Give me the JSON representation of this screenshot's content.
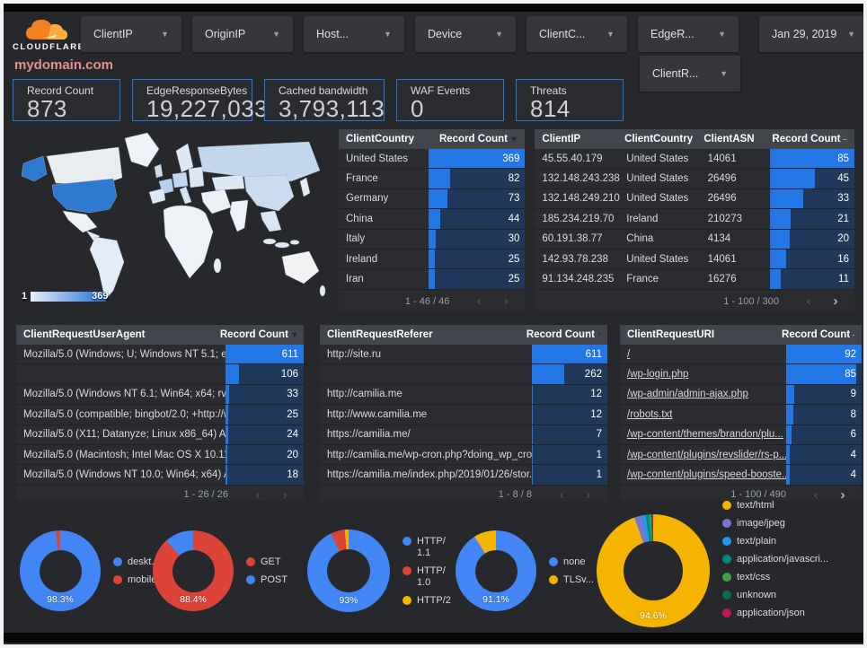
{
  "brand": {
    "name": "CLOUDFLARE"
  },
  "filters": [
    {
      "label": "ClientIP"
    },
    {
      "label": "OriginIP"
    },
    {
      "label": "Host..."
    },
    {
      "label": "Device"
    },
    {
      "label": "ClientC..."
    },
    {
      "label": "EdgeR..."
    }
  ],
  "date_filter": {
    "label": "Jan 29, 2019"
  },
  "filter_row2": {
    "label": "ClientR..."
  },
  "title": "mydomain.com",
  "scorecards": [
    {
      "label": "Record Count",
      "value": "873"
    },
    {
      "label": "EdgeResponseBytes",
      "value": "19,227,033"
    },
    {
      "label": "Cached bandwidth",
      "value": "3,793,113"
    },
    {
      "label": "WAF Events",
      "value": "0"
    },
    {
      "label": "Threats",
      "value": "814"
    }
  ],
  "map": {
    "legend_min": "1",
    "legend_max": "369"
  },
  "tables": {
    "client_country": {
      "columns": [
        "ClientCountry",
        "Record Count"
      ],
      "sort_glyph": "▼",
      "max": 369,
      "rows": [
        [
          "United States",
          369
        ],
        [
          "France",
          82
        ],
        [
          "Germany",
          73
        ],
        [
          "China",
          44
        ],
        [
          "Italy",
          30
        ],
        [
          "Ireland",
          25
        ],
        [
          "Iran",
          25
        ]
      ],
      "pagination": {
        "text": "1 - 46 / 46",
        "prev_enabled": false,
        "next_enabled": false
      }
    },
    "client_ip": {
      "columns": [
        "ClientIP",
        "ClientCountry",
        "ClientASN",
        "Record Count"
      ],
      "sort_glyph": "–",
      "max": 85,
      "rows": [
        [
          "45.55.40.179",
          "United States",
          "14061",
          85
        ],
        [
          "132.148.243.238",
          "United States",
          "26496",
          45
        ],
        [
          "132.148.249.210",
          "United States",
          "26496",
          33
        ],
        [
          "185.234.219.70",
          "Ireland",
          "210273",
          21
        ],
        [
          "60.191.38.77",
          "China",
          "4134",
          20
        ],
        [
          "142.93.78.238",
          "United States",
          "14061",
          16
        ],
        [
          "91.134.248.235",
          "France",
          "16276",
          11
        ]
      ],
      "pagination": {
        "text": "1 - 100 / 300",
        "prev_enabled": false,
        "next_enabled": true
      }
    },
    "user_agent": {
      "columns": [
        "ClientRequestUserAgent",
        "Record Count"
      ],
      "sort_glyph": "▼",
      "max": 611,
      "rows": [
        [
          "Mozilla/5.0 (Windows; U; Windows NT 5.1; en-U...",
          611
        ],
        [
          "",
          106
        ],
        [
          "Mozilla/5.0 (Windows NT 6.1; Win64; x64; rv:64...",
          33
        ],
        [
          "Mozilla/5.0 (compatible; bingbot/2.0; +http://w...",
          25
        ],
        [
          "Mozilla/5.0 (X11; Datanyze; Linux x86_64) Appl...",
          24
        ],
        [
          "Mozilla/5.0 (Macintosh; Intel Mac OS X 10.11; r...",
          20
        ],
        [
          "Mozilla/5.0 (Windows NT 10.0; Win64; x64) App...",
          18
        ]
      ],
      "pagination": {
        "text": "1 - 26 / 26",
        "prev_enabled": false,
        "next_enabled": false
      }
    },
    "referer": {
      "columns": [
        "ClientRequestReferer",
        "Record Count"
      ],
      "sort_glyph": "▼",
      "max": 611,
      "rows": [
        [
          "http://site.ru",
          611
        ],
        [
          "",
          262
        ],
        [
          "http://camilia.me",
          12
        ],
        [
          "http://www.camilia.me",
          12
        ],
        [
          "https://camilia.me/",
          7
        ],
        [
          "http://camilia.me/wp-cron.php?doing_wp_cron...",
          1
        ],
        [
          "https://camilia.me/index.php/2019/01/26/stor...",
          1
        ]
      ],
      "pagination": {
        "text": "1 - 8 / 8",
        "prev_enabled": false,
        "next_enabled": false
      }
    },
    "uri": {
      "columns": [
        "ClientRequestURI",
        "Record Count"
      ],
      "sort_glyph": "–",
      "max": 92,
      "links": true,
      "rows": [
        [
          "/",
          92
        ],
        [
          "/wp-login.php",
          85
        ],
        [
          "/wp-admin/admin-ajax.php",
          9
        ],
        [
          "/robots.txt",
          8
        ],
        [
          "/wp-content/themes/brandon/plu...",
          6
        ],
        [
          "/wp-content/plugins/revslider/rs-p...",
          4
        ],
        [
          "/wp-content/plugins/speed-booste...",
          4
        ]
      ],
      "pagination": {
        "text": "1 - 100 / 490",
        "prev_enabled": false,
        "next_enabled": true
      }
    }
  },
  "chart_data": [
    {
      "type": "map",
      "name": "records-by-country",
      "metric": "Record Count by ClientCountry",
      "range": [
        1,
        369
      ],
      "values": {
        "United States": 369,
        "France": 82,
        "Germany": 73,
        "China": 44,
        "Italy": 30,
        "Ireland": 25,
        "Iran": 25
      }
    },
    {
      "type": "pie",
      "name": "device-type",
      "label": "98.3%",
      "slices": [
        {
          "name": "deskt...",
          "pct": 98.3,
          "color": "#4285f4"
        },
        {
          "name": "mobile",
          "pct": 1.7,
          "color": "#db4437"
        }
      ]
    },
    {
      "type": "pie",
      "name": "request-method",
      "label": "88.4%",
      "slices": [
        {
          "name": "GET",
          "pct": 88.4,
          "color": "#db4437"
        },
        {
          "name": "POST",
          "pct": 11.6,
          "color": "#4285f4"
        }
      ]
    },
    {
      "type": "pie",
      "name": "http-version",
      "label": "93%",
      "slices": [
        {
          "name": "HTTP/\n1.1",
          "pct": 93,
          "color": "#4285f4"
        },
        {
          "name": "HTTP/\n1.0",
          "pct": 5.5,
          "color": "#db4437"
        },
        {
          "name": "HTTP/2",
          "pct": 1.5,
          "color": "#f4b400"
        }
      ]
    },
    {
      "type": "pie",
      "name": "tls-version",
      "label": "91.1%",
      "slices": [
        {
          "name": "none",
          "pct": 91.1,
          "color": "#4285f4"
        },
        {
          "name": "TLSv...",
          "pct": 8.9,
          "color": "#f4b400"
        }
      ]
    },
    {
      "type": "pie",
      "name": "content-type",
      "label": "94.6%",
      "slices": [
        {
          "name": "text/html",
          "pct": 94.6,
          "color": "#f4b400"
        },
        {
          "name": "image/jpeg",
          "pct": 2.1,
          "color": "#7975d2"
        },
        {
          "name": "text/plain",
          "pct": 1.2,
          "color": "#2095f2"
        },
        {
          "name": "application/javascri...",
          "pct": 0.9,
          "color": "#00897b"
        },
        {
          "name": "text/css",
          "pct": 0.6,
          "color": "#43a047"
        },
        {
          "name": "unknown",
          "pct": 0.35,
          "color": "#0b6e4f"
        },
        {
          "name": "application/json",
          "pct": 0.25,
          "color": "#c2185b"
        }
      ]
    }
  ],
  "legend_pager": "▲▼"
}
